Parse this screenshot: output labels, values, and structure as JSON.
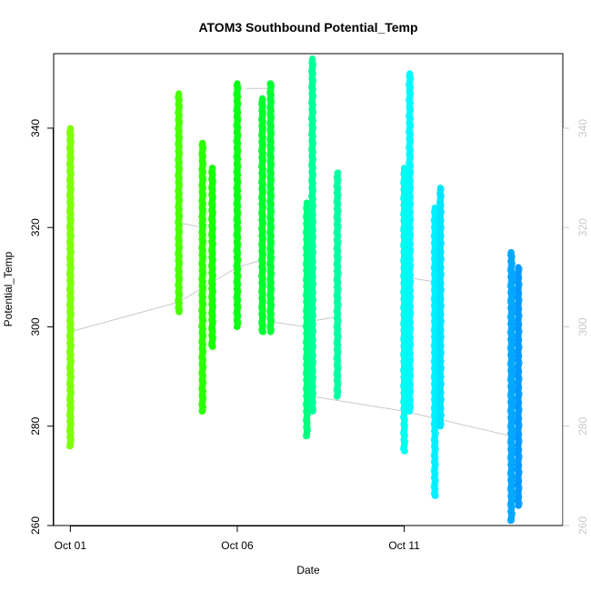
{
  "chart_data": {
    "type": "scatter",
    "title": "ATOM3 Southbound Potential_Temp",
    "xlabel": "Date",
    "ylabel": "Potential_Temp",
    "x_axis": {
      "kind": "date",
      "range": [
        "2013-09-30T12:00",
        "2013-10-15T18:00"
      ],
      "ticks": [
        {
          "value": "2013-10-01",
          "label": "Oct 01"
        },
        {
          "value": "2013-10-06",
          "label": "Oct 06"
        },
        {
          "value": "2013-10-11",
          "label": "Oct 11"
        }
      ]
    },
    "y_axis": {
      "range": [
        260,
        355
      ],
      "ticks": [
        260,
        280,
        300,
        320,
        340
      ]
    },
    "right_axis": {
      "ticks": [
        260,
        280,
        300,
        320,
        340
      ],
      "color": "#c8c8c8"
    },
    "grid": false,
    "marker": "open-circle",
    "connector_line": {
      "color": "#c8c8c8",
      "points": [
        {
          "x": "2013-10-01T00:00",
          "y": 299
        },
        {
          "x": "2013-10-04T06:00",
          "y": 305
        },
        {
          "x": "2013-10-06T00:00",
          "y": 312
        },
        {
          "x": "2013-10-07T00:00",
          "y": 314
        },
        {
          "x": "2013-10-07T00:00",
          "y": 301
        },
        {
          "x": "2013-10-08T02:00",
          "y": 300
        },
        {
          "x": "2013-10-08T06:00",
          "y": 286
        },
        {
          "x": "2013-10-11T00:00",
          "y": 283
        },
        {
          "x": "2013-10-14T05:00",
          "y": 278
        }
      ],
      "extra_segments": [
        {
          "from": {
            "x": "2013-10-04T06:00",
            "y": 321
          },
          "to": {
            "x": "2013-10-04T23:00",
            "y": 320
          }
        },
        {
          "from": {
            "x": "2013-10-06T06:00",
            "y": 348
          },
          "to": {
            "x": "2013-10-07T00:00",
            "y": 348
          }
        },
        {
          "from": {
            "x": "2013-10-08T02:00",
            "y": 301
          },
          "to": {
            "x": "2013-10-09T00:00",
            "y": 302
          }
        },
        {
          "from": {
            "x": "2013-10-11T00:00",
            "y": 310
          },
          "to": {
            "x": "2013-10-12T00:00",
            "y": 309
          }
        }
      ]
    },
    "series": [
      {
        "x": "2013-10-01T00:00",
        "y_min": 276,
        "y_max": 340,
        "color": "#7fff00"
      },
      {
        "x": "2013-10-04T06:00",
        "y_min": 303,
        "y_max": 347,
        "color": "#4cff00"
      },
      {
        "x": "2013-10-04T23:00",
        "y_min": 283,
        "y_max": 337,
        "color": "#2bff00"
      },
      {
        "x": "2013-10-05T06:00",
        "y_min": 296,
        "y_max": 332,
        "color": "#1aff00"
      },
      {
        "x": "2013-10-06T00:00",
        "y_min": 300,
        "y_max": 349,
        "color": "#0aff14"
      },
      {
        "x": "2013-10-06T18:00",
        "y_min": 299,
        "y_max": 346,
        "color": "#00ff30"
      },
      {
        "x": "2013-10-07T00:00",
        "y_min": 299,
        "y_max": 349,
        "color": "#00ff38"
      },
      {
        "x": "2013-10-08T02:00",
        "y_min": 278,
        "y_max": 325,
        "color": "#00ff80"
      },
      {
        "x": "2013-10-08T06:00",
        "y_min": 283,
        "y_max": 354,
        "color": "#00ff9a"
      },
      {
        "x": "2013-10-09T00:00",
        "y_min": 286,
        "y_max": 331,
        "color": "#00ffa0"
      },
      {
        "x": "2013-10-11T00:00",
        "y_min": 275,
        "y_max": 332,
        "color": "#00ffee"
      },
      {
        "x": "2013-10-11T04:00",
        "y_min": 283,
        "y_max": 351,
        "color": "#00f8ff"
      },
      {
        "x": "2013-10-11T22:00",
        "y_min": 266,
        "y_max": 324,
        "color": "#00f0ff"
      },
      {
        "x": "2013-10-12T02:00",
        "y_min": 280,
        "y_max": 328,
        "color": "#00e4ff"
      },
      {
        "x": "2013-10-14T05:00",
        "y_min": 261,
        "y_max": 315,
        "color": "#00a8ff"
      },
      {
        "x": "2013-10-14T10:00",
        "y_min": 264,
        "y_max": 312,
        "color": "#0098ff"
      }
    ]
  }
}
